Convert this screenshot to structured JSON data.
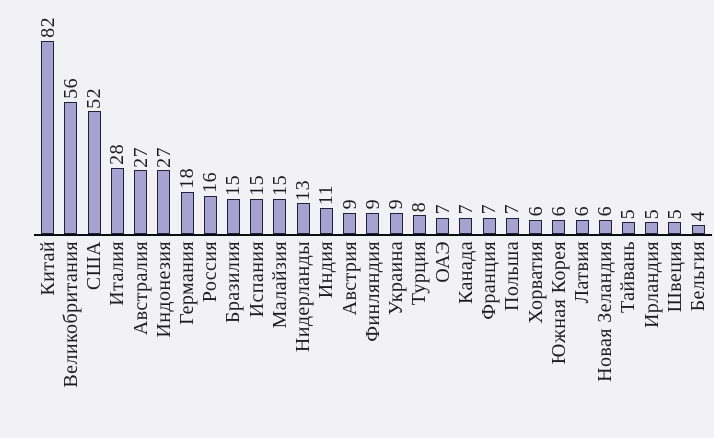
{
  "chart_data": {
    "type": "bar",
    "title": "",
    "xlabel": "",
    "ylabel": "",
    "legend_position": "none",
    "grid": false,
    "ylim": [
      0,
      90
    ],
    "orientation": "vertical-bars-rotated-labels",
    "label_rotation_degrees": 90,
    "value_label_rotation_degrees": 90,
    "categories": [
      "Китай",
      "Великобритания",
      "США",
      "Италия",
      "Австралия",
      "Индонезия",
      "Германия",
      "Россия",
      "Бразилия",
      "Испания",
      "Малайзия",
      "Нидерланды",
      "Индия",
      "Австрия",
      "Финляндия",
      "Украина",
      "Турция",
      "ОАЭ",
      "Канада",
      "Франция",
      "Польша",
      "Хорватия",
      "Южная Корея",
      "Латвия",
      "Новая Зеландия",
      "Тайвань",
      "Ирландия",
      "Швеция",
      "Бельгия"
    ],
    "values": [
      82,
      56,
      52,
      28,
      27,
      27,
      18,
      16,
      15,
      15,
      15,
      13,
      11,
      9,
      9,
      9,
      8,
      7,
      7,
      7,
      7,
      6,
      6,
      6,
      6,
      5,
      5,
      5,
      4
    ],
    "colors": {
      "background": "#f2f2f6",
      "bar_fill": "#a6a3d0",
      "bar_border": "#21213a",
      "axis_line": "#0b0b14",
      "text": "#1d1d1f"
    }
  }
}
